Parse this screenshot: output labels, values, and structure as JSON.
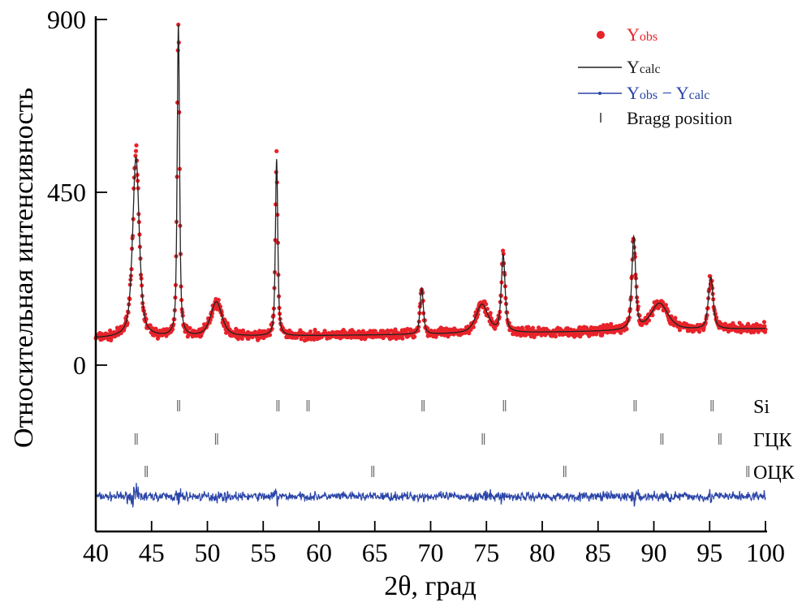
{
  "chart_data": {
    "type": "line",
    "title": "",
    "xlabel": "2θ, град",
    "ylabel": "Относительная интенсивность",
    "xlim": [
      40,
      100
    ],
    "ylim": [
      0,
      900
    ],
    "x_ticks": [
      "40",
      "45",
      "50",
      "55",
      "60",
      "65",
      "70",
      "75",
      "80",
      "85",
      "90",
      "95",
      "100"
    ],
    "y_ticks": [
      "0",
      "450",
      "900"
    ],
    "grid": false,
    "legend_position": "top-right",
    "legend": [
      {
        "key": "obs",
        "main": "Y",
        "sub": "obs",
        "color": "#e8232a",
        "marker": "dot"
      },
      {
        "key": "calc",
        "main": "Y",
        "sub": "calc",
        "color": "#222222",
        "marker": "line"
      },
      {
        "key": "diff",
        "main": "Y",
        "sub": "obs",
        "minus": " − Y",
        "sub2": "calc",
        "color": "#2b45a8",
        "marker": "line-dot"
      },
      {
        "key": "bragg",
        "label": "Bragg position",
        "color": "#666666",
        "marker": "tick"
      }
    ],
    "background": [
      {
        "x": 40,
        "y": 70
      },
      {
        "x": 70,
        "y": 80
      },
      {
        "x": 100,
        "y": 95
      }
    ],
    "peaks": [
      {
        "pos": 43.6,
        "height": 470,
        "fwhm": 0.7
      },
      {
        "pos": 47.4,
        "height": 810,
        "fwhm": 0.25
      },
      {
        "pos": 50.8,
        "height": 90,
        "fwhm": 1.2
      },
      {
        "pos": 56.2,
        "height": 460,
        "fwhm": 0.25
      },
      {
        "pos": 69.2,
        "height": 120,
        "fwhm": 0.35
      },
      {
        "pos": 74.6,
        "height": 75,
        "fwhm": 1.3
      },
      {
        "pos": 76.5,
        "height": 200,
        "fwhm": 0.4
      },
      {
        "pos": 88.2,
        "height": 240,
        "fwhm": 0.4
      },
      {
        "pos": 90.5,
        "height": 70,
        "fwhm": 1.8
      },
      {
        "pos": 95.1,
        "height": 135,
        "fwhm": 0.5
      }
    ],
    "bragg_phases": [
      {
        "name": "Si",
        "positions": [
          47.4,
          56.3,
          59.0,
          69.3,
          76.6,
          88.3,
          95.2
        ]
      },
      {
        "name": "ГЦК",
        "positions": [
          43.6,
          50.8,
          74.7,
          90.7,
          95.9
        ]
      },
      {
        "name": "ОЦК",
        "positions": [
          44.5,
          64.8,
          82.0,
          98.4
        ]
      }
    ],
    "colors": {
      "obs": "#e8232a",
      "calc": "#222222",
      "diff": "#2b45a8",
      "bragg": "#666666"
    }
  }
}
